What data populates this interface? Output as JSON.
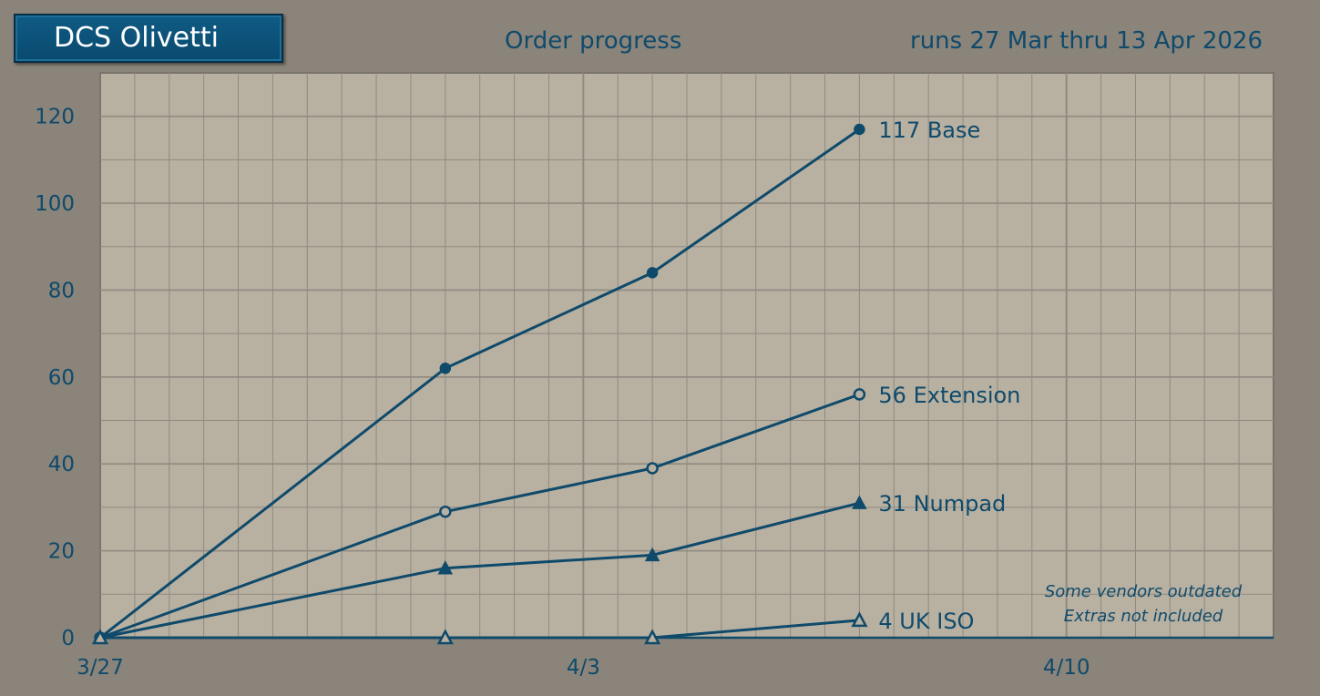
{
  "header": {
    "brand": "DCS Olivetti",
    "title": "Order progress",
    "date_range": "runs 27 Mar thru 13 Apr 2026"
  },
  "colors": {
    "background": "#8b847a",
    "plot_area": "#b8b1a2",
    "grid": "#8f8a80",
    "line": "#0f4a6b"
  },
  "chart_data": {
    "type": "line",
    "title": "Order progress",
    "x_type": "date",
    "xlim": [
      "2026-03-27",
      "2026-04-13"
    ],
    "ylim": [
      0,
      130
    ],
    "x_ticks": [
      {
        "date": "2026-03-27",
        "label": "3/27"
      },
      {
        "date": "2026-04-03",
        "label": "4/3"
      },
      {
        "date": "2026-04-10",
        "label": "4/10"
      }
    ],
    "y_ticks": [
      0,
      20,
      40,
      60,
      80,
      100,
      120
    ],
    "grid": true,
    "series": [
      {
        "name": "Base",
        "label": "117 Base",
        "marker": "filled-circle",
        "x": [
          "2026-03-27",
          "2026-04-01",
          "2026-04-04",
          "2026-04-07"
        ],
        "y": [
          0,
          62,
          84,
          117
        ]
      },
      {
        "name": "Extension",
        "label": "56 Extension",
        "marker": "open-circle",
        "x": [
          "2026-03-27",
          "2026-04-01",
          "2026-04-04",
          "2026-04-07"
        ],
        "y": [
          0,
          29,
          39,
          56
        ]
      },
      {
        "name": "Numpad",
        "label": "31 Numpad",
        "marker": "filled-triangle",
        "x": [
          "2026-03-27",
          "2026-04-01",
          "2026-04-04",
          "2026-04-07"
        ],
        "y": [
          0,
          16,
          19,
          31
        ]
      },
      {
        "name": "UK ISO",
        "label": "4 UK ISO",
        "marker": "open-triangle",
        "x": [
          "2026-03-27",
          "2026-04-01",
          "2026-04-04",
          "2026-04-07"
        ],
        "y": [
          0,
          0,
          0,
          4
        ]
      }
    ],
    "annotations": [
      "Some vendors outdated",
      "Extras not included"
    ]
  }
}
